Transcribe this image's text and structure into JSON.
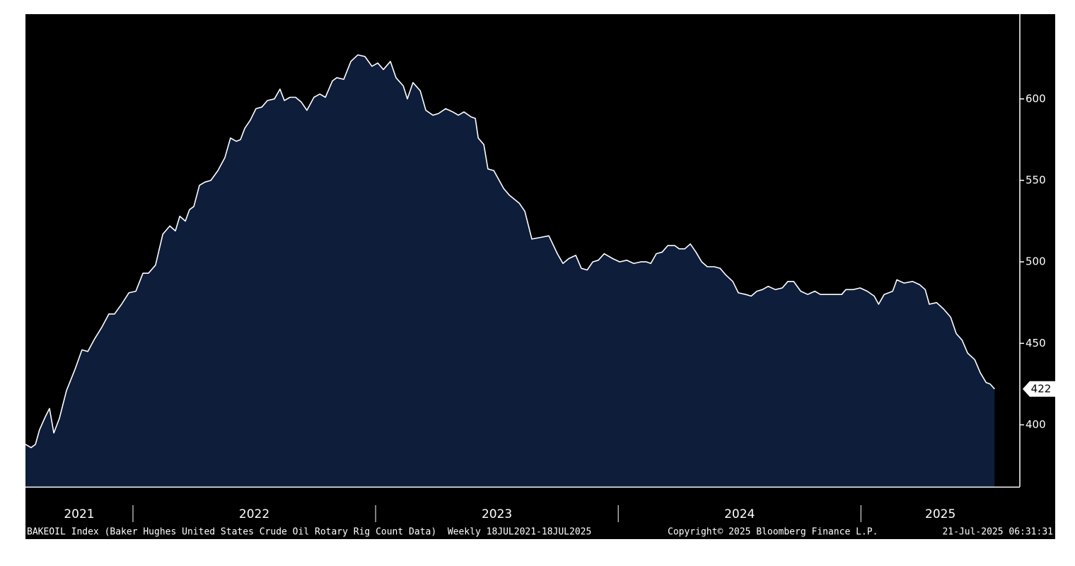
{
  "chart_data": {
    "type": "area",
    "series": [
      {
        "color": "#0d1d3a",
        "line_color": "#ffffff",
        "x": [
          2021.557,
          2021.58,
          2021.598,
          2021.615,
          2021.639,
          2021.656,
          2021.674,
          2021.697,
          2021.726,
          2021.761,
          2021.79,
          2021.814,
          2021.843,
          2021.872,
          2021.901,
          2021.924,
          2021.953,
          2021.983,
          2022.012,
          2022.041,
          2022.064,
          2022.093,
          2022.123,
          2022.152,
          2022.175,
          2022.193,
          2022.216,
          2022.233,
          2022.251,
          2022.274,
          2022.297,
          2022.321,
          2022.35,
          2022.379,
          2022.402,
          2022.426,
          2022.443,
          2022.461,
          2022.484,
          2022.507,
          2022.531,
          2022.554,
          2022.583,
          2022.606,
          2022.624,
          2022.647,
          2022.67,
          2022.694,
          2022.717,
          2022.746,
          2022.77,
          2022.793,
          2022.822,
          2022.84,
          2022.869,
          2022.898,
          2022.927,
          2022.956,
          2022.985,
          2023.009,
          2023.032,
          2023.061,
          2023.084,
          2023.114,
          2023.131,
          2023.154,
          2023.184,
          2023.207,
          2023.236,
          2023.259,
          2023.289,
          2023.318,
          2023.341,
          2023.364,
          2023.393,
          2023.411,
          2023.423,
          2023.446,
          2023.463,
          2023.487,
          2023.528,
          2023.551,
          2023.592,
          2023.615,
          2023.644,
          2023.679,
          2023.714,
          2023.749,
          2023.772,
          2023.796,
          2023.825,
          2023.848,
          2023.872,
          2023.895,
          2023.918,
          2023.942,
          2023.977,
          2024.006,
          2024.035,
          2024.064,
          2024.093,
          2024.116,
          2024.134,
          2024.157,
          2024.181,
          2024.204,
          2024.233,
          2024.251,
          2024.274,
          2024.297,
          2024.32,
          2024.344,
          2024.367,
          2024.396,
          2024.42,
          2024.443,
          2024.472,
          2024.495,
          2024.525,
          2024.548,
          2024.571,
          2024.594,
          2024.618,
          2024.647,
          2024.676,
          2024.699,
          2024.723,
          2024.752,
          2024.781,
          2024.81,
          2024.833,
          2024.863,
          2024.892,
          2024.921,
          2024.938,
          2024.968,
          2024.997,
          2025.026,
          2025.055,
          2025.073,
          2025.096,
          2025.131,
          2025.148,
          2025.178,
          2025.213,
          2025.242,
          2025.265,
          2025.282,
          2025.312,
          2025.341,
          2025.37,
          2025.393,
          2025.417,
          2025.44,
          2025.469,
          2025.492,
          2025.516,
          2025.533,
          2025.551
        ],
        "values": [
          388,
          386,
          388,
          397,
          405,
          410,
          395,
          404,
          421,
          434,
          446,
          445,
          453,
          460,
          468,
          468,
          474,
          481,
          482,
          493,
          493,
          498,
          517,
          522,
          519,
          528,
          525,
          532,
          534,
          547,
          549,
          550,
          556,
          564,
          576,
          574,
          575,
          582,
          587,
          594,
          595,
          599,
          600,
          606,
          599,
          601,
          601,
          598,
          593,
          601,
          603,
          601,
          611,
          613,
          612,
          623,
          627,
          626,
          620,
          622,
          618,
          623,
          613,
          608,
          600,
          610,
          605,
          593,
          590,
          591,
          594,
          592,
          590,
          592,
          589,
          588,
          576,
          572,
          557,
          556,
          545,
          541,
          536,
          531,
          514,
          515,
          516,
          505,
          499,
          502,
          504,
          496,
          495,
          500,
          501,
          505,
          502,
          500,
          501,
          499,
          500,
          500,
          499,
          505,
          506,
          510,
          510,
          508,
          508,
          511,
          506,
          500,
          497,
          497,
          496,
          492,
          488,
          481,
          480,
          479,
          482,
          483,
          485,
          483,
          484,
          488,
          488,
          482,
          480,
          482,
          480,
          480,
          480,
          480,
          483,
          483,
          484,
          482,
          479,
          474,
          480,
          482,
          489,
          487,
          488,
          486,
          483,
          474,
          475,
          471,
          466,
          456,
          452,
          444,
          440,
          432,
          426,
          425,
          422
        ]
      }
    ],
    "xlim": [
      2021.557,
      2025.655
    ],
    "xticks": [
      2022,
      2023,
      2024,
      2025
    ],
    "xlabels": [
      "2021",
      "2022",
      "2023",
      "2024",
      "2025"
    ],
    "ylim": [
      362,
      652
    ],
    "yticks": [
      400,
      450,
      500,
      550,
      600
    ],
    "source": "BAKEOIL Index (Baker Hughes United States Crude Oil Rotary Rig Count Data)  Weekly 18JUL2021-18JUL2025",
    "copyright": "Copyright© 2025 Bloomberg Finance L.P.",
    "timestamp": "21-Jul-2025 06:31:31"
  }
}
